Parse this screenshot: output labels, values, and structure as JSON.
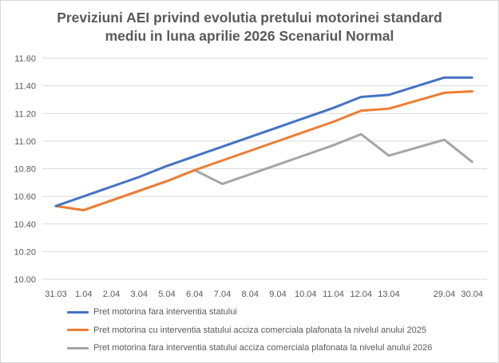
{
  "chart_data": {
    "type": "line",
    "title_line1": "Previziuni AEI privind evolutia pretului motorinei standard",
    "title_line2": "mediu in luna aprilie 2026 Scenariul Normal",
    "categories": [
      "31.03",
      "1.04",
      "2.04",
      "3.04",
      "5.04",
      "6.04",
      "7.04",
      "8.04",
      "9.04",
      "10.04",
      "11.04",
      "12.04",
      "13.04",
      "",
      "29.04",
      "30.04"
    ],
    "ylim": [
      10.0,
      11.6
    ],
    "yticks": [
      "10.00",
      "10.20",
      "10.40",
      "10.60",
      "10.80",
      "11.00",
      "11.20",
      "11.40",
      "11.60"
    ],
    "grid": true,
    "legend_position": "bottom",
    "series": [
      {
        "name": "Pret motorina fara interventia statului",
        "color": "#4472C4",
        "values": [
          10.53,
          10.6,
          10.67,
          10.74,
          10.82,
          10.89,
          10.96,
          11.03,
          11.1,
          11.17,
          11.24,
          11.32,
          11.335,
          null,
          11.46,
          11.46
        ]
      },
      {
        "name": "Pret motorina cu interventia statului acciza comerciala plafonata la nivelul anului 2025",
        "color": "#ED7D31",
        "values": [
          10.53,
          10.5,
          10.57,
          10.64,
          10.71,
          10.79,
          10.86,
          10.93,
          11.0,
          11.07,
          11.14,
          11.22,
          11.235,
          null,
          11.35,
          11.36
        ]
      },
      {
        "name": "Pret motorina fara interventia statului acciza comerciala plafonata la nivelul anului 2026",
        "color": "#A5A5A5",
        "values": [
          10.53,
          10.5,
          10.57,
          10.64,
          10.71,
          10.79,
          10.69,
          10.76,
          10.83,
          10.9,
          10.97,
          11.05,
          10.895,
          null,
          11.01,
          10.85
        ]
      }
    ]
  }
}
